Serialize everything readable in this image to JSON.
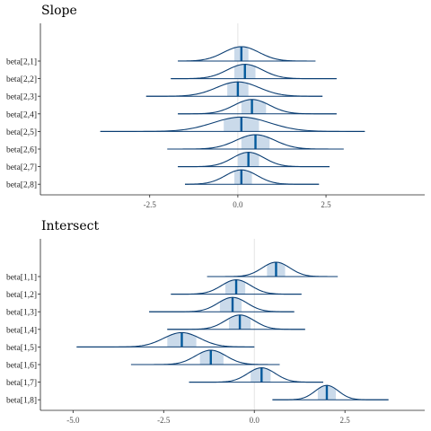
{
  "chart_data": [
    {
      "type": "ridgeline",
      "title": "Slope",
      "xlim": [
        -5.6,
        5.3
      ],
      "xticks": [
        -2.5,
        0.0,
        2.5
      ],
      "xtick_labels": [
        "-2.5",
        "0.0",
        "2.5"
      ],
      "reference_line": 0,
      "parameters": [
        {
          "label": "beta[2,1]",
          "median": 0.1,
          "interval": [
            -0.1,
            0.3
          ],
          "range": [
            -1.7,
            2.2
          ],
          "sd": 0.5
        },
        {
          "label": "beta[2,2]",
          "median": 0.2,
          "interval": [
            -0.1,
            0.5
          ],
          "range": [
            -1.9,
            2.8
          ],
          "sd": 0.5
        },
        {
          "label": "beta[2,3]",
          "median": 0.0,
          "interval": [
            -0.3,
            0.3
          ],
          "range": [
            -2.6,
            2.4
          ],
          "sd": 0.6
        },
        {
          "label": "beta[2,4]",
          "median": 0.4,
          "interval": [
            0.1,
            0.8
          ],
          "range": [
            -1.7,
            2.8
          ],
          "sd": 0.5
        },
        {
          "label": "beta[2,5]",
          "median": 0.1,
          "interval": [
            -0.4,
            0.6
          ],
          "range": [
            -3.9,
            3.6
          ],
          "sd": 0.8
        },
        {
          "label": "beta[2,6]",
          "median": 0.5,
          "interval": [
            0.1,
            0.9
          ],
          "range": [
            -2.0,
            3.0
          ],
          "sd": 0.55
        },
        {
          "label": "beta[2,7]",
          "median": 0.3,
          "interval": [
            0.0,
            0.6
          ],
          "range": [
            -1.7,
            2.6
          ],
          "sd": 0.45
        },
        {
          "label": "beta[2,8]",
          "median": 0.1,
          "interval": [
            -0.1,
            0.4
          ],
          "range": [
            -1.5,
            2.3
          ],
          "sd": 0.45
        }
      ]
    },
    {
      "type": "ridgeline",
      "title": "Intersect",
      "xlim": [
        -5.9,
        4.7
      ],
      "xticks": [
        -5.0,
        -2.5,
        0.0,
        2.5
      ],
      "xtick_labels": [
        "-5.0",
        "-2.5",
        "0.0",
        "2.5"
      ],
      "reference_line": 0,
      "parameters": [
        {
          "label": "beta[1,1]",
          "median": 0.6,
          "interval": [
            0.35,
            0.85
          ],
          "range": [
            -1.3,
            2.3
          ],
          "sd": 0.38
        },
        {
          "label": "beta[1,2]",
          "median": -0.5,
          "interval": [
            -0.8,
            -0.25
          ],
          "range": [
            -2.3,
            1.3
          ],
          "sd": 0.4
        },
        {
          "label": "beta[1,3]",
          "median": -0.6,
          "interval": [
            -0.95,
            -0.35
          ],
          "range": [
            -2.9,
            1.1
          ],
          "sd": 0.4
        },
        {
          "label": "beta[1,4]",
          "median": -0.4,
          "interval": [
            -0.7,
            -0.1
          ],
          "range": [
            -2.4,
            1.4
          ],
          "sd": 0.4
        },
        {
          "label": "beta[1,5]",
          "median": -2.0,
          "interval": [
            -2.4,
            -1.6
          ],
          "range": [
            -4.9,
            0.0
          ],
          "sd": 0.5
        },
        {
          "label": "beta[1,6]",
          "median": -1.2,
          "interval": [
            -1.5,
            -0.85
          ],
          "range": [
            -3.4,
            0.7
          ],
          "sd": 0.42
        },
        {
          "label": "beta[1,7]",
          "median": 0.2,
          "interval": [
            -0.1,
            0.45
          ],
          "range": [
            -1.8,
            1.9
          ],
          "sd": 0.38
        },
        {
          "label": "beta[1,8]",
          "median": 2.0,
          "interval": [
            1.75,
            2.25
          ],
          "range": [
            0.5,
            3.7
          ],
          "sd": 0.32
        }
      ]
    }
  ]
}
